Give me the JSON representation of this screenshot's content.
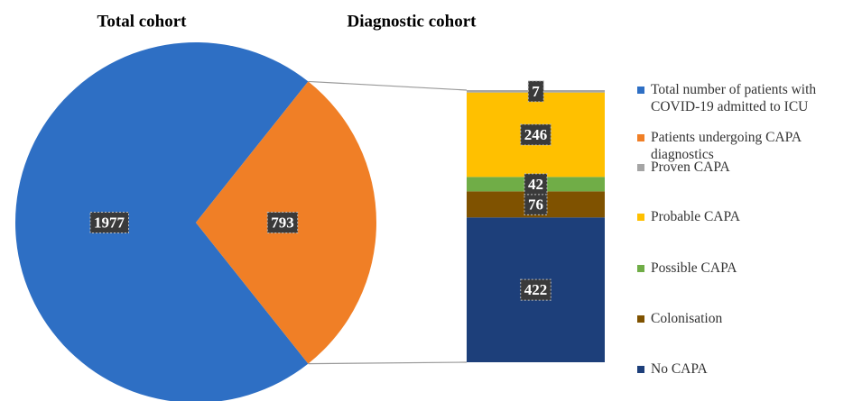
{
  "chart_data": [
    {
      "type": "pie",
      "title": "Total cohort",
      "categories": [
        "Total number of patients with COVID-19 admitted to ICU",
        "Patients undergoing CAPA diagnostics"
      ],
      "values": [
        1977,
        793
      ],
      "colors": [
        "#2e6fc4",
        "#f07f26"
      ]
    },
    {
      "type": "bar",
      "stacked": true,
      "title": "Diagnostic cohort",
      "series": [
        {
          "name": "Proven CAPA",
          "color": "#a5a5a5",
          "values": [
            7
          ]
        },
        {
          "name": "Probable CAPA",
          "color": "#ffc000",
          "values": [
            246
          ]
        },
        {
          "name": "Possible CAPA",
          "color": "#70ad47",
          "values": [
            42
          ]
        },
        {
          "name": "Colonisation",
          "color": "#7f5200",
          "values": [
            76
          ]
        },
        {
          "name": "No CAPA",
          "color": "#1d3f7a",
          "values": [
            422
          ]
        }
      ]
    }
  ]
}
